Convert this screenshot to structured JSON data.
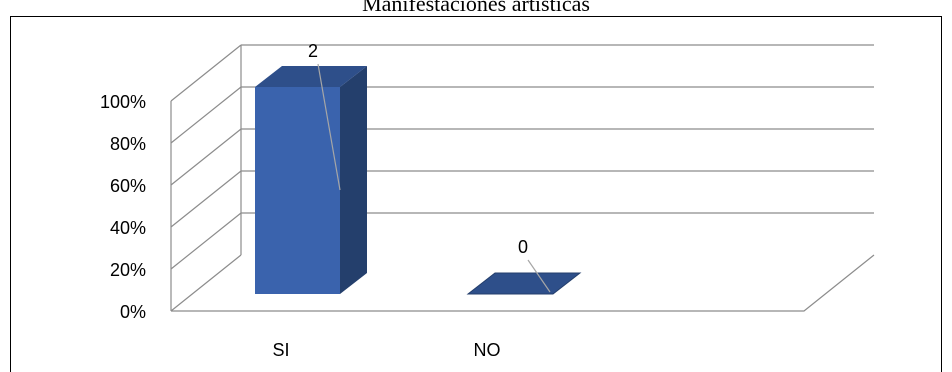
{
  "chart_data": {
    "type": "bar",
    "title": "Manifestaciones artísticas",
    "categories": [
      "SI",
      "NO"
    ],
    "series": [
      {
        "values": [
          2,
          0
        ],
        "percent": [
          100,
          0
        ]
      }
    ],
    "data_labels": [
      "2",
      "0"
    ],
    "y_ticks": [
      "0%",
      "20%",
      "40%",
      "60%",
      "80%",
      "100%"
    ],
    "ylim": [
      0,
      100
    ],
    "grid": true,
    "style": "3d-column",
    "colors": {
      "bar_front": "#3a63ad",
      "bar_side": "#243f6c",
      "bar_top": "#2e4f8a",
      "grid": "#8c8c8c",
      "frame": "#000000"
    }
  }
}
